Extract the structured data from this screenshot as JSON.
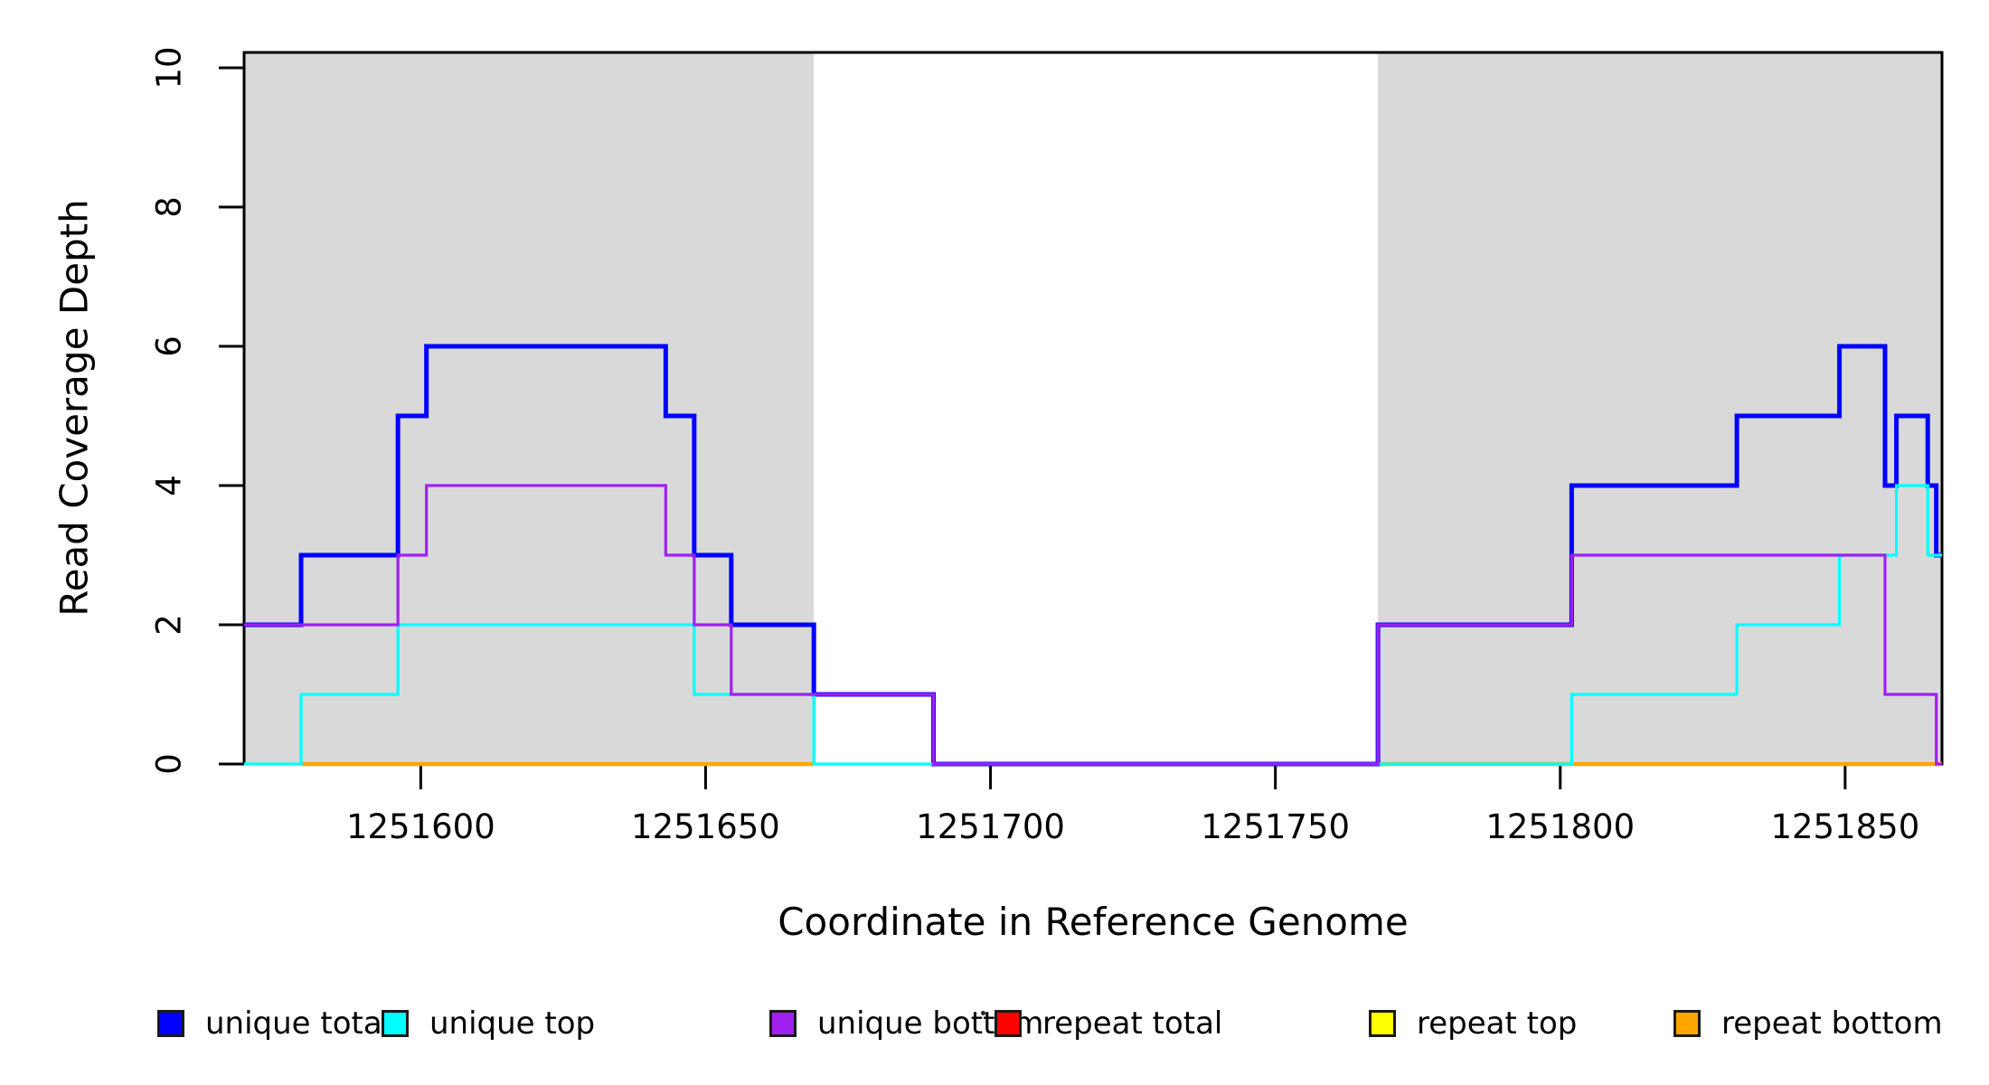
{
  "figure": {
    "kind": "read coverage step plot"
  },
  "axes": {
    "x": {
      "label": "Coordinate in Reference Genome",
      "tick_labels": [
        "1251600",
        "1251650",
        "1251700",
        "1251750",
        "1251800",
        "1251850"
      ]
    },
    "y": {
      "label": "Read Coverage Depth",
      "tick_labels": [
        "0",
        "2",
        "4",
        "6",
        "8",
        "10"
      ]
    }
  },
  "legend": {
    "items": [
      {
        "label": "unique total",
        "color": "#0000FF"
      },
      {
        "label": "unique top",
        "color": "#00FFFF"
      },
      {
        "label": "unique bottom",
        "color": "#A020F0"
      },
      {
        "label": "repeat total",
        "color": "#FF0000"
      },
      {
        "label": "repeat top",
        "color": "#FFFF00"
      },
      {
        "label": "repeat bottom",
        "color": "#FFA500"
      }
    ],
    "stray_dot": "."
  },
  "chart_data": {
    "type": "line",
    "step": true,
    "title": "",
    "xlabel": "Coordinate in Reference Genome",
    "ylabel": "Read Coverage Depth",
    "xlim": [
      1251569,
      1251867
    ],
    "ylim": [
      0,
      10.22
    ],
    "x_ticks": [
      1251600,
      1251650,
      1251700,
      1251750,
      1251800,
      1251850
    ],
    "y_ticks": [
      0,
      2,
      4,
      6,
      8,
      10
    ],
    "grid": false,
    "legend_position": "bottom",
    "colors": {
      "repeat_region": "#D9D9D9",
      "box": "#000000"
    },
    "repeat_regions": [
      [
        1251569,
        1251669
      ],
      [
        1251768,
        1251867
      ]
    ],
    "series": [
      {
        "name": "repeat total",
        "color": "#FF0000",
        "w": 3,
        "value": 0,
        "segments": [
          [
            1251569,
            1251669
          ],
          [
            1251768,
            1251867
          ]
        ]
      },
      {
        "name": "repeat top",
        "color": "#FFFF00",
        "w": 3,
        "value": 0,
        "segments": [
          [
            1251579,
            1251669
          ],
          [
            1251768,
            1251867
          ]
        ]
      },
      {
        "name": "repeat bottom",
        "color": "#FFA500",
        "w": 4.5,
        "value": 0,
        "segments": [
          [
            1251579,
            1251669
          ],
          [
            1251768,
            1251867
          ]
        ]
      },
      {
        "name": "unique total",
        "color": "#0000FF",
        "w": 5,
        "steps": [
          [
            1251569,
            2
          ],
          [
            1251579,
            3
          ],
          [
            1251596,
            5
          ],
          [
            1251601,
            6
          ],
          [
            1251643,
            5
          ],
          [
            1251648,
            3
          ],
          [
            1251654.5,
            2
          ],
          [
            1251669,
            1
          ],
          [
            1251690,
            0
          ],
          [
            1251768,
            2
          ],
          [
            1251802,
            4
          ],
          [
            1251831,
            5
          ],
          [
            1251849,
            6
          ],
          [
            1251857,
            4
          ],
          [
            1251859,
            5
          ],
          [
            1251864.5,
            4
          ],
          [
            1251866,
            3
          ]
        ]
      },
      {
        "name": "unique top",
        "color": "#00FFFF",
        "w": 3.2,
        "steps": [
          [
            1251569,
            0
          ],
          [
            1251579,
            1
          ],
          [
            1251596,
            2
          ],
          [
            1251648,
            1
          ],
          [
            1251669,
            0
          ],
          [
            1251802,
            1
          ],
          [
            1251831,
            2
          ],
          [
            1251849,
            3
          ],
          [
            1251859,
            4
          ],
          [
            1251864.5,
            3
          ]
        ]
      },
      {
        "name": "unique bottom",
        "color": "#A020F0",
        "w": 3.2,
        "steps": [
          [
            1251569,
            2
          ],
          [
            1251596,
            3
          ],
          [
            1251601,
            4
          ],
          [
            1251643,
            3
          ],
          [
            1251648,
            2
          ],
          [
            1251654.5,
            1
          ],
          [
            1251690,
            0
          ],
          [
            1251768,
            2
          ],
          [
            1251802,
            3
          ],
          [
            1251857,
            1
          ],
          [
            1251866,
            0
          ]
        ]
      }
    ]
  }
}
